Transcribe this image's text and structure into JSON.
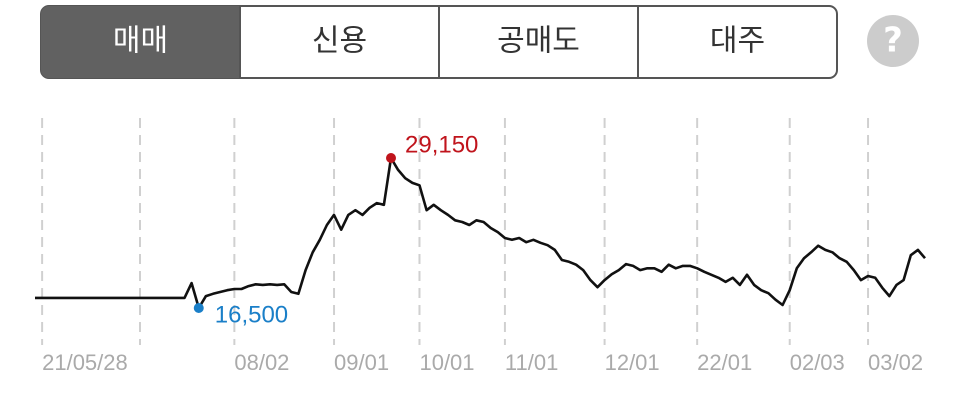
{
  "tabs": [
    "매매",
    "신용",
    "공매도",
    "대주"
  ],
  "active_tab": 0,
  "help": "?",
  "chart_data": {
    "type": "line",
    "color": "#111111",
    "max_label": "29,150",
    "max_color": "#c0141c",
    "min_label": "16,500",
    "min_color": "#1a7fc8",
    "categories": [
      null,
      "21/05/28",
      null,
      null,
      null,
      null,
      null,
      null,
      null,
      null,
      null,
      null,
      null,
      null,
      null,
      null,
      null,
      null,
      null,
      null,
      null,
      null,
      null,
      null,
      null,
      null,
      null,
      null,
      "08/02",
      null,
      null,
      null,
      null,
      null,
      null,
      null,
      null,
      null,
      null,
      null,
      null,
      null,
      "09/01",
      null,
      null,
      null,
      null,
      null,
      null,
      null,
      null,
      null,
      null,
      null,
      "10/01",
      null,
      null,
      null,
      null,
      null,
      null,
      null,
      null,
      null,
      null,
      null,
      "11/01",
      null,
      null,
      null,
      null,
      null,
      null,
      null,
      null,
      null,
      null,
      null,
      null,
      null,
      "12/01",
      null,
      null,
      null,
      null,
      null,
      null,
      null,
      null,
      null,
      null,
      null,
      null,
      "22/01",
      null,
      null,
      null,
      null,
      null,
      null,
      null,
      null,
      null,
      null,
      null,
      null,
      "02/03",
      null,
      null,
      null,
      null,
      null,
      null,
      null,
      null,
      null,
      null,
      "03/02",
      null,
      null,
      null,
      null,
      null,
      null,
      null,
      null
    ],
    "values": [
      17350,
      17350,
      17350,
      17350,
      17350,
      17350,
      17350,
      17350,
      17350,
      17350,
      17350,
      17350,
      17350,
      17350,
      17350,
      17350,
      17350,
      17350,
      17350,
      17350,
      17350,
      17350,
      18600,
      16500,
      17500,
      17700,
      17850,
      18000,
      18100,
      18100,
      18350,
      18500,
      18450,
      18500,
      18450,
      18500,
      17850,
      17700,
      19700,
      21200,
      22250,
      23500,
      24350,
      23100,
      24350,
      24750,
      24350,
      24950,
      25350,
      25200,
      29150,
      28150,
      27450,
      27050,
      26850,
      24750,
      25200,
      24750,
      24350,
      23900,
      23750,
      23500,
      23900,
      23750,
      23250,
      22900,
      22400,
      22250,
      22400,
      22050,
      22250,
      22000,
      21800,
      21400,
      20550,
      20400,
      20150,
      19700,
      18850,
      18250,
      18850,
      19350,
      19700,
      20200,
      20050,
      19700,
      19850,
      19850,
      19550,
      20150,
      19850,
      20050,
      20050,
      19850,
      19550,
      19300,
      19050,
      18700,
      19050,
      18450,
      19300,
      18450,
      18000,
      17750,
      17200,
      16750,
      18000,
      19850,
      20700,
      21200,
      21750,
      21400,
      21200,
      20700,
      20400,
      19700,
      18850,
      19200,
      19050,
      18200,
      17500,
      18450,
      18850,
      20950,
      21400,
      20700
    ]
  }
}
